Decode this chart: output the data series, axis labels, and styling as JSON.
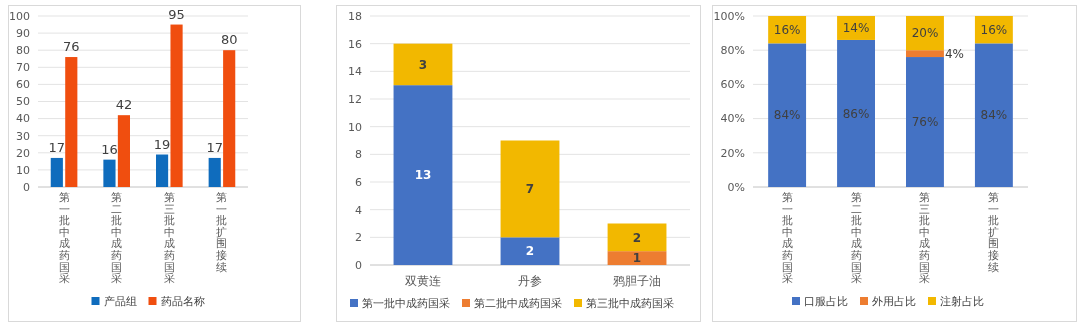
{
  "chart_data": [
    {
      "type": "bar",
      "categories": [
        "第一批中成药国采",
        "第二批中成药国采",
        "第三批中成药国采",
        "第一批扩围接续"
      ],
      "series": [
        {
          "name": "产品组",
          "color": "#0f6cbd",
          "values": [
            17,
            16,
            19,
            17
          ]
        },
        {
          "name": "药品名称",
          "color": "#f04e0f",
          "values": [
            76,
            42,
            95,
            80
          ]
        }
      ],
      "ylim": [
        0,
        100
      ],
      "yticks": [
        0,
        10,
        20,
        30,
        40,
        50,
        60,
        70,
        80,
        90,
        100
      ],
      "grid": "y",
      "legend": "bottom",
      "data_labels": true
    },
    {
      "type": "bar",
      "stacked": true,
      "categories": [
        "双黄连",
        "丹参",
        "鸦胆子油"
      ],
      "series": [
        {
          "name": "第一批中成药国采",
          "color": "#4472c4",
          "values": [
            13,
            2,
            0
          ],
          "value_labels": [
            "13",
            "2",
            null
          ]
        },
        {
          "name": "第二批中成药国采",
          "color": "#ed7d31",
          "values": [
            0,
            0,
            1
          ],
          "value_labels": [
            null,
            null,
            "1"
          ]
        },
        {
          "name": "第三批中成药国采",
          "color": "#f2b800",
          "values": [
            3,
            7,
            2
          ],
          "value_labels": [
            "3",
            "7",
            "2"
          ]
        }
      ],
      "ylim": [
        0,
        18
      ],
      "yticks": [
        0,
        2,
        4,
        6,
        8,
        10,
        12,
        14,
        16,
        18
      ],
      "grid": "y",
      "legend": "bottom"
    },
    {
      "type": "bar",
      "stacked": true,
      "categories": [
        "第一批中成药国采",
        "第二批中成药国采",
        "第三批中成药国采",
        "第一批扩围接续"
      ],
      "series": [
        {
          "name": "口服占比",
          "color": "#4472c4",
          "values": [
            84,
            86,
            76,
            84
          ],
          "value_labels": [
            "84%",
            "86%",
            "76%",
            "84%"
          ]
        },
        {
          "name": "外用占比",
          "color": "#ed7d31",
          "values": [
            0,
            0,
            4,
            0
          ],
          "value_labels": [
            null,
            null,
            "4%",
            null
          ]
        },
        {
          "name": "注射占比",
          "color": "#f2b800",
          "values": [
            16,
            14,
            20,
            16
          ],
          "value_labels": [
            "16%",
            "14%",
            "20%",
            "16%"
          ]
        }
      ],
      "ylim": [
        0,
        100
      ],
      "yticks": [
        {
          "value": 0,
          "label": "0%"
        },
        {
          "value": 20,
          "label": "20%"
        },
        {
          "value": 40,
          "label": "40%"
        },
        {
          "value": 60,
          "label": "60%"
        },
        {
          "value": 80,
          "label": "80%"
        },
        {
          "value": 100,
          "label": "100%"
        }
      ],
      "grid": "y",
      "legend": "bottom"
    }
  ]
}
